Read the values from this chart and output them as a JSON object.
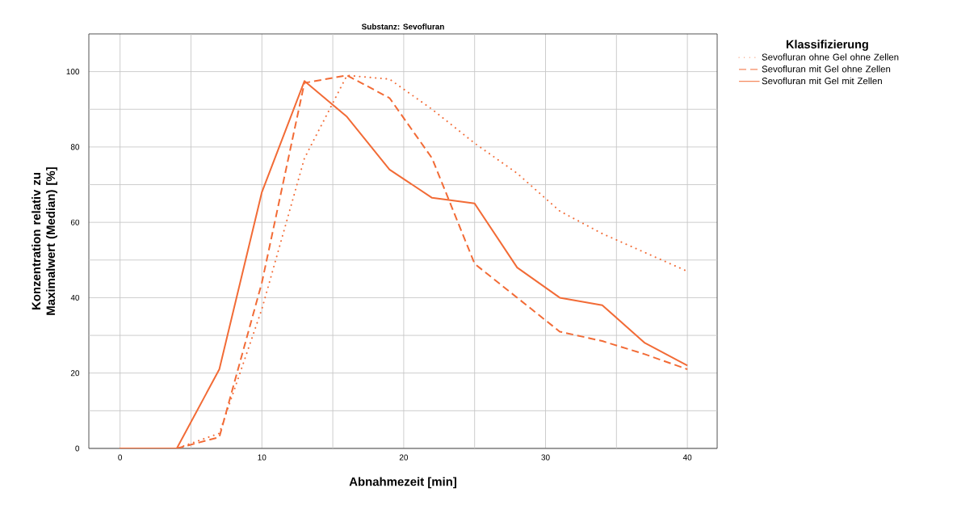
{
  "chart_data": {
    "type": "line",
    "title": "Substanz: Sevofluran",
    "xlabel": "Abnahmezeit [min]",
    "ylabel": "Konzentration relativ zu Maximalwert (Median) [%]",
    "legend_title": "Klassifizierung",
    "x": [
      0,
      4,
      7,
      10,
      13,
      16,
      19,
      22,
      25,
      28,
      31,
      34,
      37,
      40
    ],
    "series": [
      {
        "name": "Sevofluran ohne Gel ohne Zellen",
        "color": "#f26b36",
        "line_style": "dotted",
        "values": [
          0,
          0,
          4,
          37,
          77,
          99,
          98,
          90,
          81,
          73,
          63,
          57,
          52,
          47
        ]
      },
      {
        "name": "Sevofluran mit Gel ohne Zellen",
        "color": "#f26b36",
        "line_style": "dashed",
        "values": [
          0,
          0,
          3,
          44,
          97,
          99,
          93,
          77,
          49,
          40,
          31,
          28.5,
          25,
          21
        ]
      },
      {
        "name": "Sevofluran mit Gel mit Zellen",
        "color": "#f26b36",
        "line_style": "solid",
        "values": [
          0,
          0,
          21,
          68,
          97.5,
          88,
          74,
          66.5,
          65,
          48,
          40,
          38,
          28,
          22
        ]
      }
    ],
    "xlim": [
      -2.2,
      42.1
    ],
    "ylim": [
      0,
      110
    ],
    "xticks": [
      0,
      {
        "value": 5,
        "label": null
      },
      10,
      {
        "value": 15,
        "label": null
      },
      20,
      {
        "value": 25,
        "label": null
      },
      30,
      {
        "value": 35,
        "label": null
      },
      40
    ],
    "yticks": [
      0,
      {
        "value": 10,
        "label": null
      },
      20,
      {
        "value": 30,
        "label": null
      },
      40,
      {
        "value": 50,
        "label": null
      },
      60,
      {
        "value": 70,
        "label": null
      },
      80,
      {
        "value": 90,
        "label": null
      },
      100
    ],
    "grid": true,
    "legend": "top right",
    "marker": "none"
  }
}
